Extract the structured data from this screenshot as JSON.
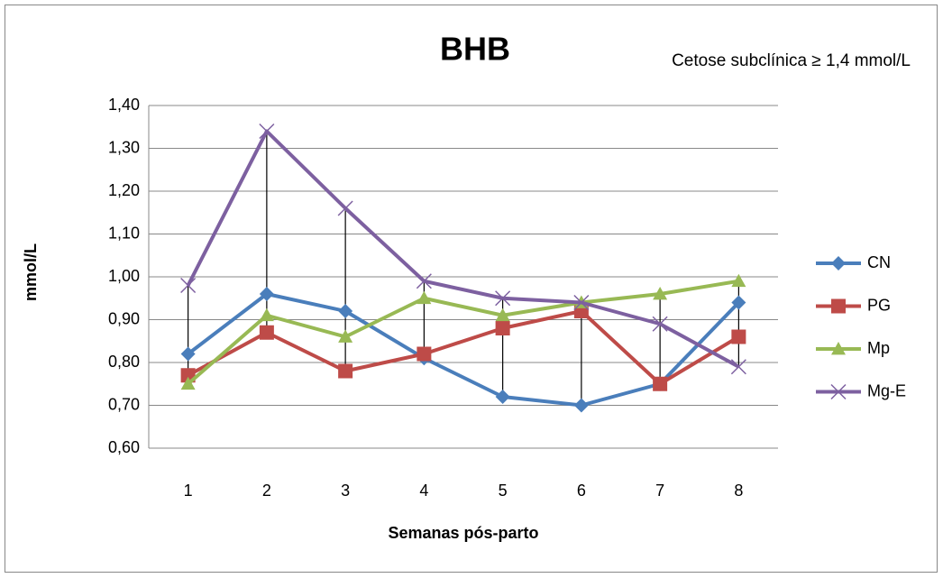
{
  "chart_data": {
    "type": "line",
    "title": "BHB",
    "annotation": "Cetose subclínica ≥ 1,4 mmol/L",
    "x_label": "Semanas pós-parto",
    "y_label": "mmol/L",
    "categories": [
      "1",
      "2",
      "3",
      "4",
      "5",
      "6",
      "7",
      "8"
    ],
    "series": [
      {
        "name": "CN",
        "color": "#4a7ebb",
        "marker": "diamond",
        "values": [
          0.82,
          0.96,
          0.92,
          0.81,
          0.72,
          0.7,
          0.75,
          0.94
        ]
      },
      {
        "name": "PG",
        "color": "#be4b48",
        "marker": "square",
        "values": [
          0.77,
          0.87,
          0.78,
          0.82,
          0.88,
          0.92,
          0.75,
          0.86
        ]
      },
      {
        "name": "Mp",
        "color": "#98b954",
        "marker": "triangle",
        "values": [
          0.75,
          0.91,
          0.86,
          0.95,
          0.91,
          0.94,
          0.96,
          0.99
        ]
      },
      {
        "name": "Mg-E",
        "color": "#7d60a0",
        "marker": "x",
        "values": [
          0.98,
          1.34,
          1.16,
          0.99,
          0.95,
          0.94,
          0.89,
          0.79
        ]
      }
    ],
    "ylim": [
      0.6,
      1.4
    ],
    "yticks": [
      {
        "value": 0.6,
        "label": "0,60"
      },
      {
        "value": 0.7,
        "label": "0,70"
      },
      {
        "value": 0.8,
        "label": "0,80"
      },
      {
        "value": 0.9,
        "label": "0,90"
      },
      {
        "value": 1.0,
        "label": "1,00"
      },
      {
        "value": 1.1,
        "label": "1,10"
      },
      {
        "value": 1.2,
        "label": "1,20"
      },
      {
        "value": 1.3,
        "label": "1,30"
      },
      {
        "value": 1.4,
        "label": "1,40"
      }
    ],
    "grid": true,
    "high_low_lines": true,
    "legend": "right"
  }
}
